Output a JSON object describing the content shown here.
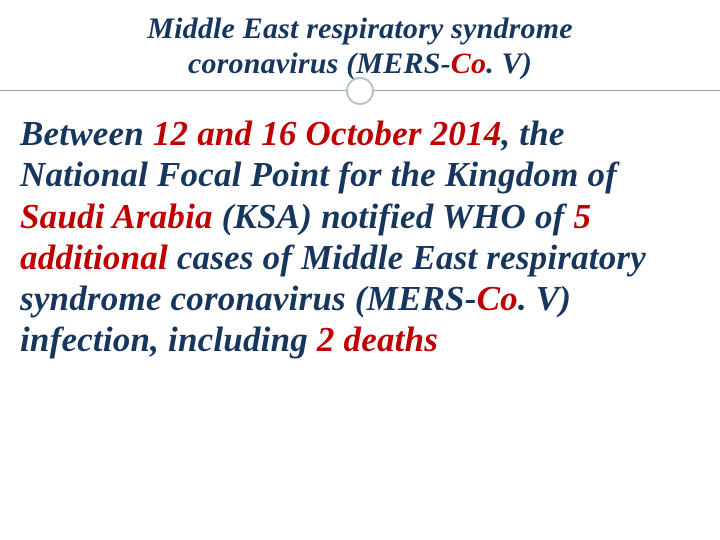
{
  "colors": {
    "text_navy": "#17365d",
    "text_red": "#c00000",
    "rule": "#9aa6b2",
    "circle_border": "#b7c0c9",
    "background": "#ffffff"
  },
  "typography": {
    "family": "Georgia serif",
    "title_fontsize_pt": 22,
    "body_fontsize_pt": 26,
    "style": "italic",
    "weight": "bold"
  },
  "title": {
    "line1": "Middle East respiratory syndrome",
    "line2_pre": "coronavirus (MERS-",
    "line2_red": "Co",
    "line2_post": ". V)"
  },
  "body": {
    "t1": "Between ",
    "r1": "12 and 16 October 2014",
    "t2": ", the National Focal Point for the Kingdom of ",
    "r2": "Saudi Arabia",
    "t3": " (KSA) notified WHO of ",
    "r3": "5 additional",
    "t4": " cases of Middle East respiratory syndrome coronavirus (MERS-",
    "r4": "Co",
    "t5": ". V)  infection, including ",
    "r5": "2 deaths"
  }
}
